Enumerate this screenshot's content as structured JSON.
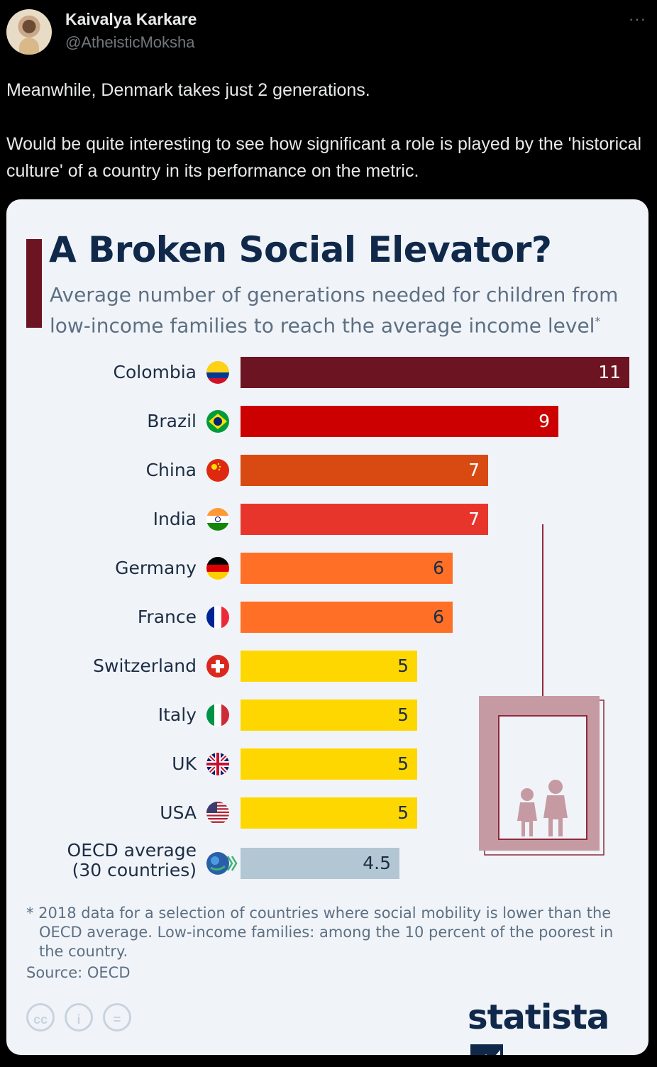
{
  "tweet": {
    "author_name": "Kaivalya Karkare",
    "author_handle": "@AtheisticMoksha",
    "more_icon": "···",
    "text_line1": "Meanwhile, Denmark takes just 2 generations.",
    "text_line2": "Would be quite interesting to see how significant a role is played by the 'historical culture' of a country in its performance on the metric."
  },
  "infographic": {
    "title": "A Broken Social Elevator?",
    "subtitle": "Average number of generations needed for children from low-income families to reach the average income level",
    "subtitle_mark": "*",
    "footnote_line1": "* 2018 data for a selection of countries where social mobility is lower than the",
    "footnote_line2": "OECD average. Low-income families: among the 10 percent of the poorest in",
    "footnote_line3": "the country.",
    "source": "Source: OECD",
    "brand": "statista",
    "license_icons": [
      "cc-icon",
      "attribution-icon",
      "no-derivatives-icon"
    ],
    "license_labels": [
      "cc",
      "i",
      "="
    ],
    "colors": {
      "dark_red": "#6d1423",
      "red": "#cc0000",
      "dark_orange": "#d84a12",
      "orange_red": "#e8352c",
      "orange": "#ff6f26",
      "yellow": "#ffd700",
      "gray_blue": "#b3c6d3",
      "navy": "#10294a"
    }
  },
  "chart_data": {
    "type": "bar",
    "orientation": "horizontal",
    "categories": [
      "Colombia",
      "Brazil",
      "China",
      "India",
      "Germany",
      "France",
      "Switzerland",
      "Italy",
      "UK",
      "USA",
      "OECD average (30 countries)"
    ],
    "category_lines": [
      [
        "Colombia"
      ],
      [
        "Brazil"
      ],
      [
        "China"
      ],
      [
        "India"
      ],
      [
        "Germany"
      ],
      [
        "France"
      ],
      [
        "Switzerland"
      ],
      [
        "Italy"
      ],
      [
        "UK"
      ],
      [
        "USA"
      ],
      [
        "OECD average",
        "(30 countries)"
      ]
    ],
    "values": [
      11,
      9,
      7,
      7,
      6,
      6,
      5,
      5,
      5,
      5,
      4.5
    ],
    "value_labels": [
      "11",
      "9",
      "7",
      "7",
      "6",
      "6",
      "5",
      "5",
      "5",
      "5",
      "4.5"
    ],
    "bar_colors": [
      "#6d1423",
      "#cc0000",
      "#d84a12",
      "#e8352c",
      "#ff6f26",
      "#ff6f26",
      "#ffd700",
      "#ffd700",
      "#ffd700",
      "#ffd700",
      "#b3c6d3"
    ],
    "label_colors": [
      "#ffffff",
      "#ffffff",
      "#ffffff",
      "#ffffff",
      "#1d2d44",
      "#1d2d44",
      "#1d2d44",
      "#1d2d44",
      "#1d2d44",
      "#1d2d44",
      "#1d2d44"
    ],
    "flag_icons": [
      "colombia-flag-icon",
      "brazil-flag-icon",
      "china-flag-icon",
      "india-flag-icon",
      "germany-flag-icon",
      "france-flag-icon",
      "switzerland-flag-icon",
      "italy-flag-icon",
      "uk-flag-icon",
      "usa-flag-icon",
      "oecd-logo-icon"
    ],
    "xlim": [
      0,
      11
    ],
    "grid": false,
    "legend": "none"
  }
}
